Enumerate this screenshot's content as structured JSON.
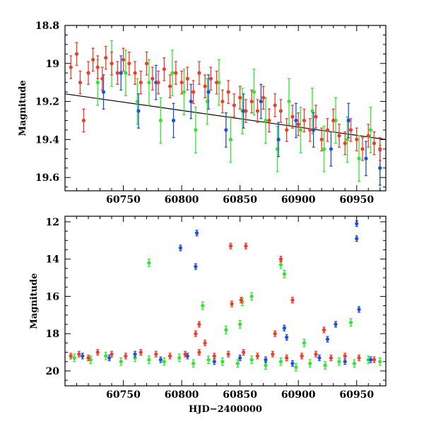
{
  "chart_data": [
    {
      "type": "scatter",
      "panel": "top",
      "title": "",
      "xlabel": "",
      "ylabel": "Magnitude",
      "xlim": [
        60700,
        60975
      ],
      "ylim": [
        18.8,
        19.67
      ],
      "y_inverted": true,
      "xticks": [
        60750,
        60800,
        60850,
        60900,
        60950
      ],
      "xtick_labels": [
        "60750",
        "60800",
        "60850",
        "60900",
        "60950"
      ],
      "yticks": [
        18.8,
        19.0,
        19.2,
        19.4,
        19.6
      ],
      "ytick_labels": [
        "18.8",
        "19",
        "19.2",
        "19.4",
        "19.6"
      ],
      "colors": {
        "red": "#f03c28",
        "green": "#32e632",
        "blue": "#1e50dc",
        "trend": "#000000"
      },
      "trend_line": {
        "x": [
          60700,
          60975
        ],
        "y": [
          19.16,
          19.4
        ]
      },
      "series": [
        {
          "name": "red",
          "color": "#f03c28",
          "err": 0.06,
          "x": [
            60705,
            60710,
            60713,
            60716,
            60720,
            60724,
            60728,
            60732,
            60735,
            60740,
            60745,
            60750,
            60755,
            60760,
            60765,
            60770,
            60775,
            60780,
            60785,
            60790,
            60795,
            60800,
            60805,
            60810,
            60815,
            60820,
            60825,
            60830,
            60835,
            60840,
            60845,
            60850,
            60855,
            60860,
            60865,
            60870,
            60875,
            60880,
            60885,
            60890,
            60895,
            60900,
            60905,
            60910,
            60915,
            60920,
            60925,
            60930,
            60935,
            60940,
            60945,
            60950,
            60955,
            60960,
            60965,
            60970
          ],
          "y": [
            19.02,
            18.95,
            19.1,
            19.3,
            19.05,
            18.98,
            19.02,
            19.08,
            18.97,
            19.0,
            19.05,
            18.98,
            19.0,
            19.05,
            19.1,
            19.0,
            19.08,
            19.1,
            19.03,
            19.12,
            19.05,
            19.1,
            19.08,
            19.15,
            19.05,
            19.12,
            19.08,
            19.1,
            19.2,
            19.15,
            19.22,
            19.18,
            19.25,
            19.2,
            19.25,
            19.18,
            19.3,
            19.22,
            19.25,
            19.35,
            19.28,
            19.32,
            19.3,
            19.35,
            19.28,
            19.4,
            19.35,
            19.3,
            19.38,
            19.42,
            19.35,
            19.4,
            19.45,
            19.38,
            19.42,
            19.45
          ]
        },
        {
          "name": "green",
          "color": "#32e632",
          "err": 0.12,
          "x": [
            60728,
            60740,
            60752,
            60762,
            60772,
            60782,
            60792,
            60802,
            60812,
            60822,
            60832,
            60842,
            60852,
            60862,
            60872,
            60882,
            60892,
            60902,
            60912,
            60922,
            60932,
            60942,
            60952,
            60962,
            60970
          ],
          "y": [
            19.1,
            19.0,
            19.05,
            19.2,
            19.1,
            19.3,
            19.05,
            19.15,
            19.35,
            19.2,
            19.1,
            19.4,
            19.25,
            19.15,
            19.3,
            19.45,
            19.2,
            19.35,
            19.25,
            19.45,
            19.3,
            19.4,
            19.5,
            19.35,
            19.55
          ]
        },
        {
          "name": "blue",
          "color": "#1e50dc",
          "err": 0.09,
          "x": [
            60733,
            60748,
            60763,
            60778,
            60793,
            60808,
            60823,
            60838,
            60853,
            60868,
            60883,
            60898,
            60913,
            60928,
            60943,
            60958,
            60970
          ],
          "y": [
            19.15,
            19.05,
            19.25,
            19.1,
            19.3,
            19.2,
            19.15,
            19.35,
            19.25,
            19.2,
            19.4,
            19.3,
            19.35,
            19.45,
            19.3,
            19.5,
            19.55
          ]
        }
      ]
    },
    {
      "type": "scatter",
      "panel": "bottom",
      "title": "",
      "xlabel": "HJD−2400000",
      "ylabel": "Magnitude",
      "xlim": [
        60700,
        60975
      ],
      "ylim": [
        11.7,
        20.8
      ],
      "y_inverted": true,
      "xticks": [
        60750,
        60800,
        60850,
        60900,
        60950
      ],
      "xtick_labels": [
        "60750",
        "60800",
        "60850",
        "60900",
        "60950"
      ],
      "yticks": [
        12,
        14,
        16,
        18,
        20
      ],
      "ytick_labels": [
        "12",
        "14",
        "16",
        "18",
        "20"
      ],
      "series": [
        {
          "name": "red",
          "color": "#f03c28",
          "err": 0.15,
          "x": [
            60705,
            60712,
            60720,
            60728,
            60740,
            60752,
            60765,
            60778,
            60790,
            60803,
            60815,
            60828,
            60840,
            60853,
            60865,
            60878,
            60890,
            60903,
            60915,
            60928,
            60940,
            60952,
            60965,
            60815,
            60842,
            60855,
            60843,
            60851,
            60885,
            60895,
            60812,
            60820,
            60880,
            60922
          ],
          "y": [
            19.2,
            19.1,
            19.3,
            19.0,
            19.1,
            19.2,
            19.0,
            19.1,
            19.2,
            19.1,
            19.0,
            19.2,
            19.1,
            19.0,
            19.2,
            19.1,
            19.3,
            19.2,
            19.1,
            19.3,
            19.2,
            19.3,
            19.4,
            17.5,
            13.3,
            13.3,
            16.4,
            16.2,
            14.0,
            16.2,
            18.0,
            18.5,
            18.0,
            17.8
          ]
        },
        {
          "name": "green",
          "color": "#32e632",
          "err": 0.2,
          "x": [
            60708,
            60722,
            60735,
            60748,
            60760,
            60772,
            60785,
            60798,
            60810,
            60823,
            60835,
            60848,
            60860,
            60872,
            60885,
            60898,
            60910,
            60923,
            60935,
            60948,
            60960,
            60970,
            60772,
            60818,
            60852,
            60860,
            60888,
            60885,
            60838,
            60850,
            60905,
            60945
          ],
          "y": [
            19.3,
            19.4,
            19.2,
            19.5,
            19.3,
            19.4,
            19.5,
            19.3,
            19.6,
            19.4,
            19.5,
            19.6,
            19.4,
            19.7,
            19.5,
            19.8,
            19.6,
            19.7,
            19.5,
            19.6,
            19.4,
            19.5,
            14.2,
            16.5,
            16.3,
            16.0,
            14.8,
            14.3,
            17.8,
            17.5,
            18.5,
            17.4
          ]
        },
        {
          "name": "blue",
          "color": "#1e50dc",
          "err": 0.15,
          "x": [
            60715,
            60738,
            60760,
            60782,
            60805,
            60828,
            60850,
            60872,
            60895,
            60918,
            60940,
            60962,
            60799,
            60812,
            60813,
            60950,
            60950,
            60952,
            60888,
            60890,
            60932,
            60925
          ],
          "y": [
            19.2,
            19.3,
            19.1,
            19.4,
            19.2,
            19.5,
            19.3,
            19.4,
            19.6,
            19.3,
            19.5,
            19.4,
            13.4,
            14.4,
            12.6,
            12.1,
            12.9,
            16.7,
            17.7,
            18.2,
            17.5,
            18.3
          ]
        }
      ]
    }
  ]
}
